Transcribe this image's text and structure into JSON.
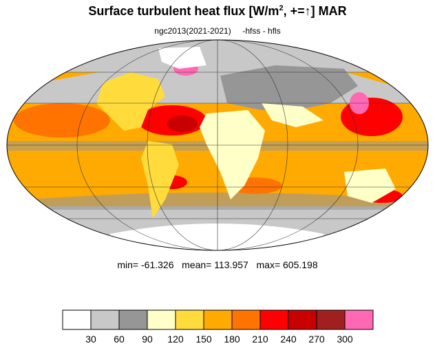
{
  "title": {
    "main": "Surface turbulent heat flux [W/m",
    "exponent": "2",
    "suffix": ", +=↑]  MAR"
  },
  "subtitle": {
    "left": "ngc2013(2021-2021)",
    "right": "-hfss - hfls"
  },
  "stats": {
    "min_label": "min=",
    "min_value": "-61.326",
    "mean_label": "mean=",
    "mean_value": "113.957",
    "max_label": "max=",
    "max_value": "605.198"
  },
  "colorbar": {
    "colors": [
      "#ffffff",
      "#c8c8c8",
      "#969696",
      "#ffffc8",
      "#ffdc3c",
      "#ffaa00",
      "#ff7300",
      "#ff0000",
      "#c80000",
      "#a02020",
      "#ff69b4"
    ],
    "tick_labels": [
      "30",
      "60",
      "90",
      "120",
      "150",
      "180",
      "210",
      "240",
      "270",
      "300"
    ]
  },
  "map": {
    "projection": "Mollweide",
    "ocean_fill": "#ffaa00",
    "land_fill": "#ffdc3c",
    "grid": true
  }
}
